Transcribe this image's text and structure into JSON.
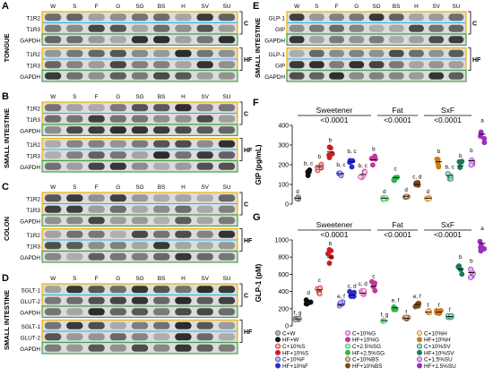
{
  "lanes": [
    "W",
    "S",
    "F",
    "G",
    "SG",
    "BS",
    "H",
    "SV",
    "SU"
  ],
  "left_panels": [
    {
      "letter": "A",
      "tissue": "TONGUE",
      "groups": [
        {
          "label": "C",
          "rows": [
            "T1R2",
            "T1R3"
          ]
        },
        {
          "label": "HF",
          "rows": [
            "T1R2",
            "T1R3"
          ]
        }
      ]
    },
    {
      "letter": "B",
      "tissue": "SMALL INTESTINE",
      "groups": [
        {
          "label": "C",
          "rows": [
            "T1R2",
            "T1R3"
          ]
        },
        {
          "label": "HF",
          "rows": [
            "T1R2",
            "T1R3"
          ]
        }
      ]
    },
    {
      "letter": "C",
      "tissue": "COLON",
      "groups": [
        {
          "label": "C",
          "rows": [
            "T1R2",
            "T1R3"
          ]
        },
        {
          "label": "HF",
          "rows": [
            "T1R2",
            "T1R3"
          ]
        }
      ]
    },
    {
      "letter": "D",
      "tissue": "SMALL INTESTINE",
      "groups": [
        {
          "label": "C",
          "rows": [
            "SGLT-1",
            "GLUT-2"
          ]
        },
        {
          "label": "HF",
          "rows": [
            "SGLT-1",
            "GLUT-2"
          ]
        }
      ]
    }
  ],
  "loading_control": "GAPDH",
  "panel_e": {
    "letter": "E",
    "tissue": "SMALL INTESTINE",
    "groups": [
      {
        "label": "C",
        "rows": [
          "GLP-1",
          "GIP"
        ]
      },
      {
        "label": "HF",
        "rows": [
          "GLP-1",
          "GIP"
        ]
      }
    ]
  },
  "chart_data": [
    {
      "type": "scatter",
      "panel": "F",
      "ylabel": "GIP (pg/mL)",
      "ylim": [
        0,
        400
      ],
      "yticks": [
        0,
        100,
        200,
        300,
        400
      ],
      "grid": false,
      "brackets": [
        {
          "title": "Sweetener",
          "p": "<0.0001"
        },
        {
          "title": "Fat",
          "p": "<0.0001"
        },
        {
          "title": "SxF",
          "p": "<0.0001"
        }
      ],
      "groups": [
        {
          "name": "C+W",
          "mean": 30,
          "letter": "d"
        },
        {
          "name": "HF+W",
          "mean": 160,
          "letter": "b, c"
        },
        {
          "name": "C+10%S",
          "mean": 190,
          "letter": "b"
        },
        {
          "name": "HF+10%S",
          "mean": 265,
          "letter": "b"
        },
        {
          "name": "C+10%F",
          "mean": 155,
          "letter": "b, c"
        },
        {
          "name": "HF+10%F",
          "mean": 215,
          "letter": "b, c"
        },
        {
          "name": "C+10%G",
          "mean": 150,
          "letter": "b, c"
        },
        {
          "name": "HF+10%G",
          "mean": 225,
          "letter": "b"
        },
        {
          "name": "C+2.5%SG",
          "mean": 30,
          "letter": "d"
        },
        {
          "name": "HF+2.5%SG",
          "mean": 135,
          "letter": "c"
        },
        {
          "name": "C+10%BS",
          "mean": 40,
          "letter": "d"
        },
        {
          "name": "HF+10%BS",
          "mean": 100,
          "letter": "c, d"
        },
        {
          "name": "C+10%H",
          "mean": 30,
          "letter": "d"
        },
        {
          "name": "HF+10%H",
          "mean": 215,
          "letter": "b"
        },
        {
          "name": "C+10%SV",
          "mean": 145,
          "letter": "b, c"
        },
        {
          "name": "HF+10%SV",
          "mean": 195,
          "letter": "b"
        },
        {
          "name": "C+1.5%SU",
          "mean": 220,
          "letter": "b"
        },
        {
          "name": "HF+1.5%SU",
          "mean": 355,
          "letter": "a"
        }
      ]
    },
    {
      "type": "scatter",
      "panel": "G",
      "ylabel": "GLP-1 (pM)",
      "ylim": [
        0,
        1000
      ],
      "yticks": [
        0,
        200,
        400,
        600,
        800,
        1000
      ],
      "grid": false,
      "brackets": [
        {
          "title": "Sweetener",
          "p": "<0.0001"
        },
        {
          "title": "Fat",
          "p": "<0.0001"
        },
        {
          "title": "SxF",
          "p": "<0.0001"
        }
      ],
      "groups": [
        {
          "name": "C+W",
          "mean": 80,
          "letter": "f, g"
        },
        {
          "name": "HF+W",
          "mean": 290,
          "letter": "d"
        },
        {
          "name": "C+10%S",
          "mean": 420,
          "letter": "c"
        },
        {
          "name": "HF+10%S",
          "mean": 800,
          "letter": "b"
        },
        {
          "name": "C+10%F",
          "mean": 250,
          "letter": "e, f"
        },
        {
          "name": "HF+10%F",
          "mean": 360,
          "letter": "c, d"
        },
        {
          "name": "C+10%G",
          "mean": 380,
          "letter": "c, d"
        },
        {
          "name": "HF+10%G",
          "mean": 460,
          "letter": "c"
        },
        {
          "name": "C+2.5%SG",
          "mean": 60,
          "letter": "f, g"
        },
        {
          "name": "HF+2.5%SG",
          "mean": 210,
          "letter": "e, f"
        },
        {
          "name": "C+10%BS",
          "mean": 90,
          "letter": "f"
        },
        {
          "name": "HF+10%BS",
          "mean": 250,
          "letter": "e, f"
        },
        {
          "name": "C+10%H",
          "mean": 160,
          "letter": "f"
        },
        {
          "name": "HF+10%H",
          "mean": 160,
          "letter": "f"
        },
        {
          "name": "C+10%SV",
          "mean": 110,
          "letter": "f"
        },
        {
          "name": "HF+10%SV",
          "mean": 660,
          "letter": "b"
        },
        {
          "name": "C+1.5%SU",
          "mean": 620,
          "letter": "b"
        },
        {
          "name": "HF+1.5%SU",
          "mean": 960,
          "letter": "a"
        }
      ]
    }
  ],
  "legend": [
    {
      "label": "C+W",
      "color": "#bdbdbd",
      "outline": "#555555"
    },
    {
      "label": "C+10%G",
      "color": "#f6c6e6",
      "outline": "#c0399a"
    },
    {
      "label": "C+10%H",
      "color": "#fbe0b8",
      "outline": "#d07a18"
    },
    {
      "label": "HF+W",
      "color": "#111111",
      "outline": "#111111"
    },
    {
      "label": "HF+10%G",
      "color": "#c0399a",
      "outline": "#c0399a"
    },
    {
      "label": "HF+10%H",
      "color": "#d07a18",
      "outline": "#d07a18"
    },
    {
      "label": "C+10%S",
      "color": "#f3b2b2",
      "outline": "#c81e1e"
    },
    {
      "label": "C+2.5%SG",
      "color": "#bff0c4",
      "outline": "#2fb84a"
    },
    {
      "label": "C+10%SV",
      "color": "#a8dcc5",
      "outline": "#1e7a55"
    },
    {
      "label": "HF+10%S",
      "color": "#c81e1e",
      "outline": "#c81e1e"
    },
    {
      "label": "HF+2.5%SG",
      "color": "#2fb84a",
      "outline": "#2fb84a"
    },
    {
      "label": "HF+10%SV",
      "color": "#1e7a55",
      "outline": "#1e7a55"
    },
    {
      "label": "C+10%F",
      "color": "#b9b9f4",
      "outline": "#2b2bcf"
    },
    {
      "label": "C+10%BS",
      "color": "#e3c2a2",
      "outline": "#7a4a1e"
    },
    {
      "label": "C+1.5%SU",
      "color": "#e4b8f2",
      "outline": "#9a2fc0"
    },
    {
      "label": "HF+10%F",
      "color": "#2b2bcf",
      "outline": "#2b2bcf"
    },
    {
      "label": "HF+10%BS",
      "color": "#7a4a1e",
      "outline": "#7a4a1e"
    },
    {
      "label": "HF+1.5%SU",
      "color": "#9a2fc0",
      "outline": "#9a2fc0"
    }
  ],
  "colors": {
    "c_box": "#f0b000",
    "t1r3_box": "#29b6f6",
    "gapdh_box": "#43a047"
  }
}
